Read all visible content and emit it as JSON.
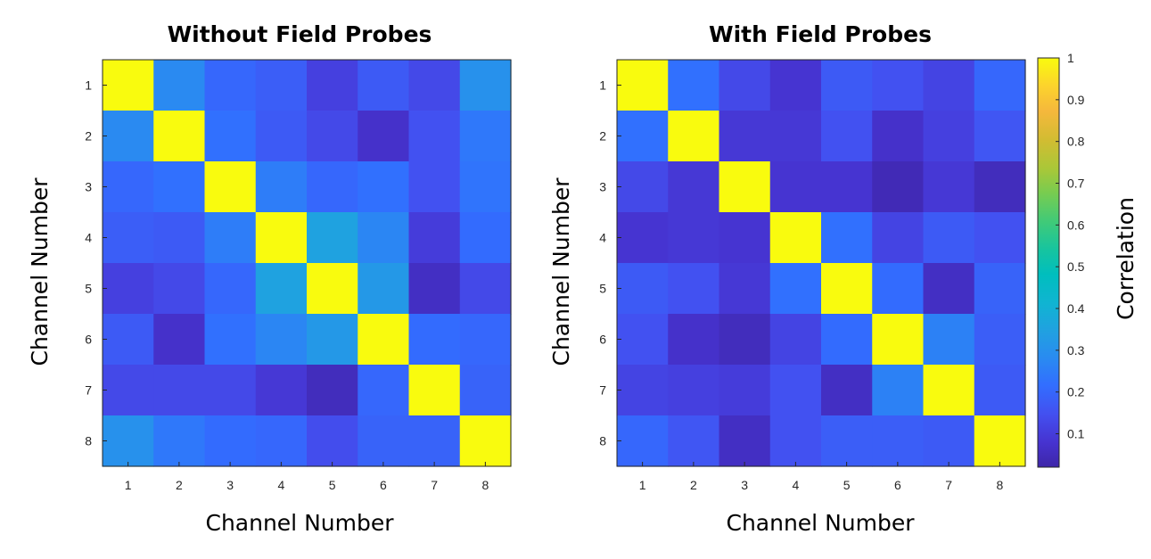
{
  "chart_data": [
    {
      "type": "heatmap",
      "title": "Without Field Probes",
      "xlabel": "Channel Number",
      "ylabel": "Channel Number",
      "x": [
        "1",
        "2",
        "3",
        "4",
        "5",
        "6",
        "7",
        "8"
      ],
      "y": [
        "1",
        "2",
        "3",
        "4",
        "5",
        "6",
        "7",
        "8"
      ],
      "values": [
        [
          1.0,
          0.28,
          0.2,
          0.18,
          0.11,
          0.17,
          0.13,
          0.3
        ],
        [
          0.28,
          1.0,
          0.22,
          0.17,
          0.13,
          0.07,
          0.15,
          0.24
        ],
        [
          0.2,
          0.22,
          1.0,
          0.25,
          0.2,
          0.22,
          0.15,
          0.23
        ],
        [
          0.18,
          0.17,
          0.25,
          1.0,
          0.35,
          0.27,
          0.1,
          0.21
        ],
        [
          0.11,
          0.13,
          0.2,
          0.35,
          1.0,
          0.32,
          0.06,
          0.13
        ],
        [
          0.17,
          0.07,
          0.22,
          0.27,
          0.32,
          1.0,
          0.21,
          0.2
        ],
        [
          0.13,
          0.13,
          0.13,
          0.09,
          0.05,
          0.2,
          1.0,
          0.19
        ],
        [
          0.3,
          0.24,
          0.21,
          0.2,
          0.14,
          0.19,
          0.19,
          1.0
        ]
      ],
      "clim": [
        0.02,
        1
      ]
    },
    {
      "type": "heatmap",
      "title": "With Field Probes",
      "xlabel": "Channel Number",
      "ylabel": "Channel Number",
      "x": [
        "1",
        "2",
        "3",
        "4",
        "5",
        "6",
        "7",
        "8"
      ],
      "y": [
        "1",
        "2",
        "3",
        "4",
        "5",
        "6",
        "7",
        "8"
      ],
      "values": [
        [
          1.0,
          0.22,
          0.13,
          0.08,
          0.17,
          0.15,
          0.12,
          0.2
        ],
        [
          0.22,
          1.0,
          0.09,
          0.09,
          0.15,
          0.07,
          0.11,
          0.16
        ],
        [
          0.13,
          0.09,
          1.0,
          0.08,
          0.08,
          0.04,
          0.09,
          0.05
        ],
        [
          0.08,
          0.09,
          0.08,
          1.0,
          0.22,
          0.12,
          0.17,
          0.15
        ],
        [
          0.17,
          0.15,
          0.09,
          0.22,
          1.0,
          0.21,
          0.06,
          0.19
        ],
        [
          0.15,
          0.07,
          0.05,
          0.12,
          0.21,
          1.0,
          0.26,
          0.18
        ],
        [
          0.12,
          0.11,
          0.1,
          0.15,
          0.06,
          0.26,
          1.0,
          0.17
        ],
        [
          0.2,
          0.16,
          0.06,
          0.15,
          0.18,
          0.18,
          0.17,
          1.0
        ]
      ],
      "clim": [
        0.02,
        1
      ]
    }
  ],
  "colorbar": {
    "label": "Correlation",
    "colormap": "parula",
    "ticks": [
      0.1,
      0.2,
      0.3,
      0.4,
      0.5,
      0.6,
      0.7,
      0.8,
      0.9,
      1
    ],
    "tick_labels": [
      "0.1",
      "0.2",
      "0.3",
      "0.4",
      "0.5",
      "0.6",
      "0.7",
      "0.8",
      "0.9",
      "1"
    ],
    "range": [
      0.02,
      1
    ]
  }
}
